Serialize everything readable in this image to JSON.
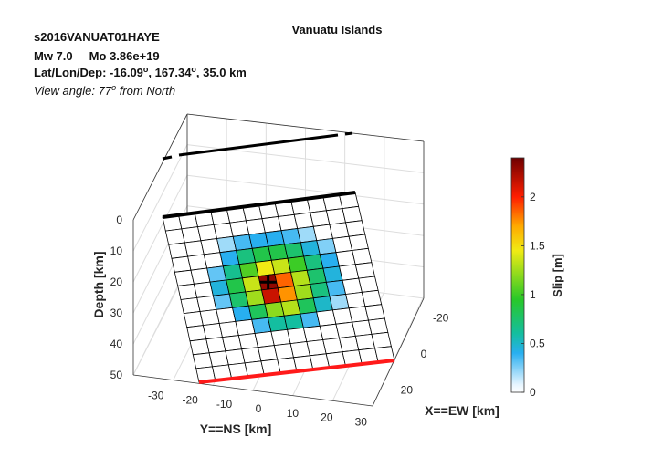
{
  "header": {
    "title": "Vanuatu Islands",
    "event_id": "s2016VANUAT01HAYE",
    "magnitude_line": "Mw 7.0     Mo 3.86e+19",
    "location_prefix": "Lat/Lon/Dep: ",
    "lat": "-16.09",
    "lon": "167.34",
    "depth": "35.0 km",
    "degree_sup": "o",
    "view_prefix": "View angle:  ",
    "view_angle": "77",
    "view_suffix": " from North"
  },
  "chart_data": {
    "type": "heatmap",
    "title": "Vanuatu Islands",
    "xlabel": "X==EW [km]",
    "ylabel": "Y==NS [km]",
    "zlabel": "Depth [km]",
    "x_ticks": [
      -20,
      0,
      20
    ],
    "y_ticks": [
      -30,
      -20,
      -10,
      0,
      10,
      20,
      30
    ],
    "z_ticks": [
      0,
      10,
      20,
      30,
      40,
      50
    ],
    "grid": true,
    "colorbar": {
      "label": "Slip [m]",
      "ticks": [
        0,
        0.5,
        1,
        1.5,
        2
      ],
      "range": [
        0,
        2.4
      ],
      "placement": "right"
    },
    "fault_grid": {
      "rows": 12,
      "cols": 12,
      "slip_m": [
        [
          0,
          0,
          0,
          0,
          0,
          0,
          0,
          0,
          0,
          0,
          0,
          0
        ],
        [
          0,
          0,
          0,
          0,
          0,
          0,
          0,
          0,
          0,
          0,
          0,
          0
        ],
        [
          0,
          0,
          0,
          0.2,
          0.35,
          0.4,
          0.4,
          0.35,
          0.2,
          0,
          0,
          0
        ],
        [
          0,
          0,
          0,
          0.4,
          0.7,
          0.85,
          0.85,
          0.75,
          0.45,
          0.25,
          0,
          0
        ],
        [
          0,
          0,
          0.3,
          0.65,
          1.05,
          1.45,
          1.35,
          1.0,
          0.7,
          0.4,
          0,
          0
        ],
        [
          0,
          0,
          0.45,
          0.85,
          1.35,
          2.3,
          1.85,
          1.3,
          0.75,
          0.45,
          0,
          0
        ],
        [
          0,
          0,
          0.3,
          0.75,
          1.25,
          2.15,
          1.75,
          1.25,
          0.7,
          0.35,
          0,
          0
        ],
        [
          0,
          0,
          0,
          0.4,
          0.8,
          1.2,
          1.3,
          0.8,
          0.5,
          0.2,
          0,
          0
        ],
        [
          0,
          0,
          0,
          0,
          0.35,
          0.6,
          0.6,
          0.35,
          0,
          0,
          0,
          0
        ],
        [
          0,
          0,
          0,
          0,
          0,
          0,
          0,
          0,
          0,
          0,
          0,
          0
        ],
        [
          0,
          0,
          0,
          0,
          0,
          0,
          0,
          0,
          0,
          0,
          0,
          0
        ],
        [
          0,
          0,
          0,
          0,
          0,
          0,
          0,
          0,
          0,
          0,
          0,
          0
        ]
      ],
      "hypocenter_cell": [
        5,
        5
      ]
    }
  }
}
